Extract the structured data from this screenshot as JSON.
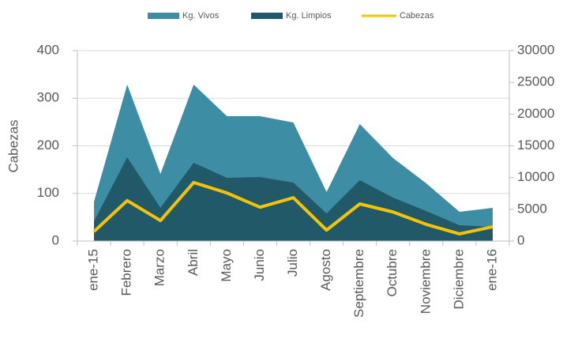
{
  "chart_data": {
    "type": "area",
    "y_label": "Cabezas",
    "categories": [
      "ene-15",
      "Febrero",
      "Marzo",
      "Abril",
      "Mayo",
      "Junio",
      "Julio",
      "Agosto",
      "Septiembre",
      "Octubre",
      "Noviembre",
      "Diciembre",
      "ene-16"
    ],
    "series": [
      {
        "name": "Kg. Vivos",
        "type": "area",
        "axis": "y2",
        "color": "#3d8ea4",
        "values": [
          6200,
          24650,
          10580,
          24650,
          19670,
          19670,
          18670,
          7720,
          18430,
          13070,
          9090,
          4600,
          5230
        ]
      },
      {
        "name": "Kg. Limpios",
        "type": "area",
        "axis": "y2",
        "color": "#215968",
        "values": [
          3110,
          13200,
          5230,
          12330,
          9960,
          10090,
          9210,
          4360,
          9590,
          6850,
          4730,
          2490,
          2240
        ]
      },
      {
        "name": "Cabezas",
        "type": "line",
        "axis": "y",
        "color": "#f5c400",
        "values": [
          20,
          85,
          43,
          123,
          101,
          71,
          91,
          23,
          78,
          61,
          35,
          15,
          30
        ]
      }
    ],
    "ylim": [
      0,
      400
    ],
    "yticks": [
      0,
      100,
      200,
      300,
      400
    ],
    "y2lim": [
      0,
      30000
    ],
    "y2ticks": [
      0,
      5000,
      10000,
      15000,
      20000,
      25000,
      30000
    ],
    "grid": true,
    "legend": "top"
  }
}
